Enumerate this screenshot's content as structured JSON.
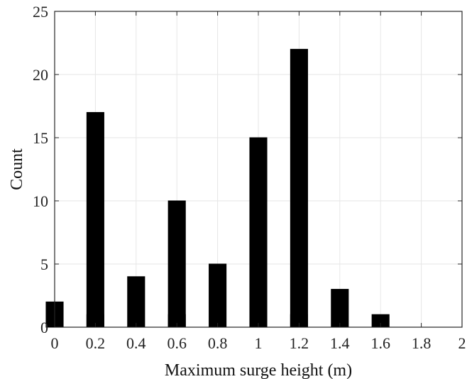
{
  "chart_data": {
    "type": "bar",
    "xlabel": "Maximum surge height (m)",
    "ylabel": "Count",
    "xlim": [
      0,
      2
    ],
    "ylim": [
      0,
      25
    ],
    "xticks": [
      0,
      0.2,
      0.4,
      0.6,
      0.8,
      1,
      1.2,
      1.4,
      1.6,
      1.8,
      2
    ],
    "xtick_labels": [
      "0",
      "0.2",
      "0.4",
      "0.6",
      "0.8",
      "1",
      "1.2",
      "1.4",
      "1.6",
      "1.8",
      "2"
    ],
    "yticks": [
      0,
      5,
      10,
      15,
      20,
      25
    ],
    "ytick_labels": [
      "0",
      "5",
      "10",
      "15",
      "20",
      "25"
    ],
    "bin_width": 0.2,
    "bar_centers": [
      0.1,
      0.3,
      0.5,
      0.7,
      0.9,
      1.1,
      1.3,
      1.5,
      1.7,
      1.9
    ],
    "series": [
      {
        "values": [
          2,
          1,
          4,
          1,
          5,
          15,
          1,
          3,
          1,
          0
        ],
        "bin_offset": -0.1
      },
      {
        "values": [
          17,
          0,
          10,
          0,
          0,
          22,
          0,
          0,
          0,
          0
        ],
        "bin_offset": 0.1
      }
    ],
    "colors": {
      "bar": "#000000",
      "grid": "#e6e6e6",
      "axis": "#262626"
    },
    "grid": true,
    "legend": "none"
  }
}
